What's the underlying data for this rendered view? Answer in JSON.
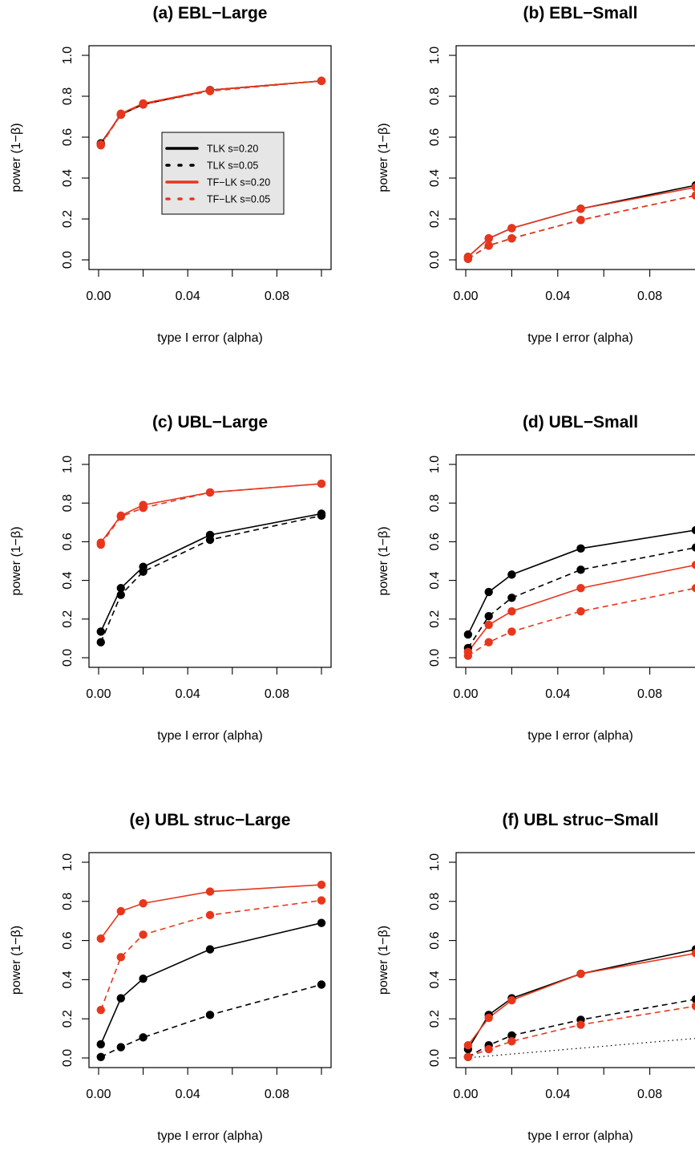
{
  "colors": {
    "tlk": "#000000",
    "tflk": "#e8361c",
    "legend_bg": "#e6e6e6"
  },
  "legend": {
    "entries": [
      {
        "label": "TLK s=0.20",
        "color": "#000000",
        "dash": "solid"
      },
      {
        "label": "TLK s=0.05",
        "color": "#000000",
        "dash": "dotted"
      },
      {
        "label": "TF−LK s=0.20",
        "color": "#e8361c",
        "dash": "solid"
      },
      {
        "label": "TF−LK s=0.05",
        "color": "#e8361c",
        "dash": "dotted"
      }
    ]
  },
  "chart_data": [
    {
      "type": "line",
      "title": "(a) EBL−Large",
      "xlabel": "type I error (alpha)",
      "ylabel": "power (1−β)",
      "xlim": [
        0,
        0.1
      ],
      "ylim": [
        0,
        1
      ],
      "xticks": [
        "0.00",
        "0.04",
        "0.08"
      ],
      "yticks": [
        "0.0",
        "0.2",
        "0.4",
        "0.6",
        "0.8",
        "1.0"
      ],
      "x": [
        0.001,
        0.01,
        0.02,
        0.05,
        0.1
      ],
      "legend_position": "center-right",
      "series": [
        {
          "name": "TLK s=0.20",
          "color": "#000000",
          "dash": "solid",
          "values": [
            0.57,
            0.71,
            0.76,
            0.83,
            0.875
          ]
        },
        {
          "name": "TLK s=0.05",
          "color": "#000000",
          "dash": "dashed",
          "values": [
            0.565,
            0.71,
            0.76,
            0.83,
            0.875
          ]
        },
        {
          "name": "TF−LK s=0.20",
          "color": "#e8361c",
          "dash": "solid",
          "values": [
            0.565,
            0.715,
            0.765,
            0.83,
            0.875
          ]
        },
        {
          "name": "TF−LK s=0.05",
          "color": "#e8361c",
          "dash": "dashed",
          "values": [
            0.56,
            0.71,
            0.76,
            0.825,
            0.875
          ]
        }
      ]
    },
    {
      "type": "line",
      "title": "(b) EBL−Small",
      "xlabel": "type I error (alpha)",
      "ylabel": "power (1−β)",
      "xlim": [
        0,
        0.1
      ],
      "ylim": [
        0,
        1
      ],
      "xticks": [
        "0.00",
        "0.04",
        "0.08"
      ],
      "yticks": [
        "0.0",
        "0.2",
        "0.4",
        "0.6",
        "0.8",
        "1.0"
      ],
      "x": [
        0.001,
        0.01,
        0.02,
        0.05,
        0.1
      ],
      "series": [
        {
          "name": "TLK s=0.20",
          "color": "#000000",
          "dash": "solid",
          "values": [
            0.015,
            0.105,
            0.155,
            0.25,
            0.365
          ]
        },
        {
          "name": "TLK s=0.05",
          "color": "#000000",
          "dash": "dashed",
          "values": [
            0.005,
            0.07,
            0.105,
            0.195,
            0.315
          ]
        },
        {
          "name": "TF−LK s=0.20",
          "color": "#e8361c",
          "dash": "solid",
          "values": [
            0.015,
            0.105,
            0.155,
            0.25,
            0.355
          ]
        },
        {
          "name": "TF−LK s=0.05",
          "color": "#e8361c",
          "dash": "dashed",
          "values": [
            0.005,
            0.07,
            0.105,
            0.195,
            0.315
          ]
        }
      ]
    },
    {
      "type": "line",
      "title": "(c) UBL−Large",
      "xlabel": "type I error (alpha)",
      "ylabel": "power (1−β)",
      "xlim": [
        0,
        0.1
      ],
      "ylim": [
        0,
        1
      ],
      "xticks": [
        "0.00",
        "0.04",
        "0.08"
      ],
      "yticks": [
        "0.0",
        "0.2",
        "0.4",
        "0.6",
        "0.8",
        "1.0"
      ],
      "x": [
        0.001,
        0.01,
        0.02,
        0.05,
        0.1
      ],
      "series": [
        {
          "name": "TLK s=0.20",
          "color": "#000000",
          "dash": "solid",
          "values": [
            0.135,
            0.36,
            0.47,
            0.635,
            0.745
          ]
        },
        {
          "name": "TLK s=0.05",
          "color": "#000000",
          "dash": "dashed",
          "values": [
            0.08,
            0.325,
            0.445,
            0.61,
            0.735
          ]
        },
        {
          "name": "TF−LK s=0.20",
          "color": "#e8361c",
          "dash": "solid",
          "values": [
            0.595,
            0.735,
            0.79,
            0.855,
            0.9
          ]
        },
        {
          "name": "TF−LK s=0.05",
          "color": "#e8361c",
          "dash": "dashed",
          "values": [
            0.585,
            0.73,
            0.775,
            0.855,
            0.9
          ]
        }
      ]
    },
    {
      "type": "line",
      "title": "(d) UBL−Small",
      "xlabel": "type I error (alpha)",
      "ylabel": "power (1−β)",
      "xlim": [
        0,
        0.1
      ],
      "ylim": [
        0,
        1
      ],
      "xticks": [
        "0.00",
        "0.04",
        "0.08"
      ],
      "yticks": [
        "0.0",
        "0.2",
        "0.4",
        "0.6",
        "0.8",
        "1.0"
      ],
      "x": [
        0.001,
        0.01,
        0.02,
        0.05,
        0.1
      ],
      "series": [
        {
          "name": "TLK s=0.20",
          "color": "#000000",
          "dash": "solid",
          "values": [
            0.12,
            0.34,
            0.43,
            0.565,
            0.66
          ]
        },
        {
          "name": "TLK s=0.05",
          "color": "#000000",
          "dash": "dashed",
          "values": [
            0.05,
            0.215,
            0.31,
            0.455,
            0.57
          ]
        },
        {
          "name": "TF−LK s=0.20",
          "color": "#e8361c",
          "dash": "solid",
          "values": [
            0.03,
            0.17,
            0.24,
            0.36,
            0.48
          ]
        },
        {
          "name": "TF−LK s=0.05",
          "color": "#e8361c",
          "dash": "dashed",
          "values": [
            0.01,
            0.08,
            0.135,
            0.24,
            0.36
          ]
        }
      ]
    },
    {
      "type": "line",
      "title": "(e) UBL struc−Large",
      "xlabel": "type I error (alpha)",
      "ylabel": "power (1−β)",
      "xlim": [
        0,
        0.1
      ],
      "ylim": [
        0,
        1
      ],
      "xticks": [
        "0.00",
        "0.04",
        "0.08"
      ],
      "yticks": [
        "0.0",
        "0.2",
        "0.4",
        "0.6",
        "0.8",
        "1.0"
      ],
      "x": [
        0.001,
        0.01,
        0.02,
        0.05,
        0.1
      ],
      "series": [
        {
          "name": "TLK s=0.20",
          "color": "#000000",
          "dash": "solid",
          "values": [
            0.07,
            0.305,
            0.405,
            0.555,
            0.69
          ]
        },
        {
          "name": "TLK s=0.05",
          "color": "#000000",
          "dash": "dashed",
          "values": [
            0.005,
            0.055,
            0.105,
            0.22,
            0.375
          ]
        },
        {
          "name": "TF−LK s=0.20",
          "color": "#e8361c",
          "dash": "solid",
          "values": [
            0.61,
            0.75,
            0.79,
            0.85,
            0.885
          ]
        },
        {
          "name": "TF−LK s=0.05",
          "color": "#e8361c",
          "dash": "dashed",
          "values": [
            0.245,
            0.515,
            0.63,
            0.73,
            0.805
          ]
        }
      ]
    },
    {
      "type": "line",
      "title": "(f) UBL struc−Small",
      "xlabel": "type I error (alpha)",
      "ylabel": "power (1−β)",
      "xlim": [
        0,
        0.1
      ],
      "ylim": [
        0,
        1
      ],
      "xticks": [
        "0.00",
        "0.04",
        "0.08"
      ],
      "yticks": [
        "0.0",
        "0.2",
        "0.4",
        "0.6",
        "0.8",
        "1.0"
      ],
      "x": [
        0.001,
        0.01,
        0.02,
        0.05,
        0.1
      ],
      "reference_line": {
        "style": "dotted",
        "from": [
          0,
          0
        ],
        "to": [
          0.1,
          0.1
        ]
      },
      "series": [
        {
          "name": "TLK s=0.20",
          "color": "#000000",
          "dash": "solid",
          "values": [
            0.045,
            0.22,
            0.305,
            0.43,
            0.555
          ]
        },
        {
          "name": "TLK s=0.05",
          "color": "#000000",
          "dash": "dashed",
          "values": [
            0.005,
            0.065,
            0.115,
            0.195,
            0.3
          ]
        },
        {
          "name": "TF−LK s=0.20",
          "color": "#e8361c",
          "dash": "solid",
          "values": [
            0.065,
            0.205,
            0.295,
            0.43,
            0.535
          ]
        },
        {
          "name": "TF−LK s=0.05",
          "color": "#e8361c",
          "dash": "dashed",
          "values": [
            0.005,
            0.045,
            0.085,
            0.17,
            0.265
          ]
        }
      ]
    }
  ]
}
